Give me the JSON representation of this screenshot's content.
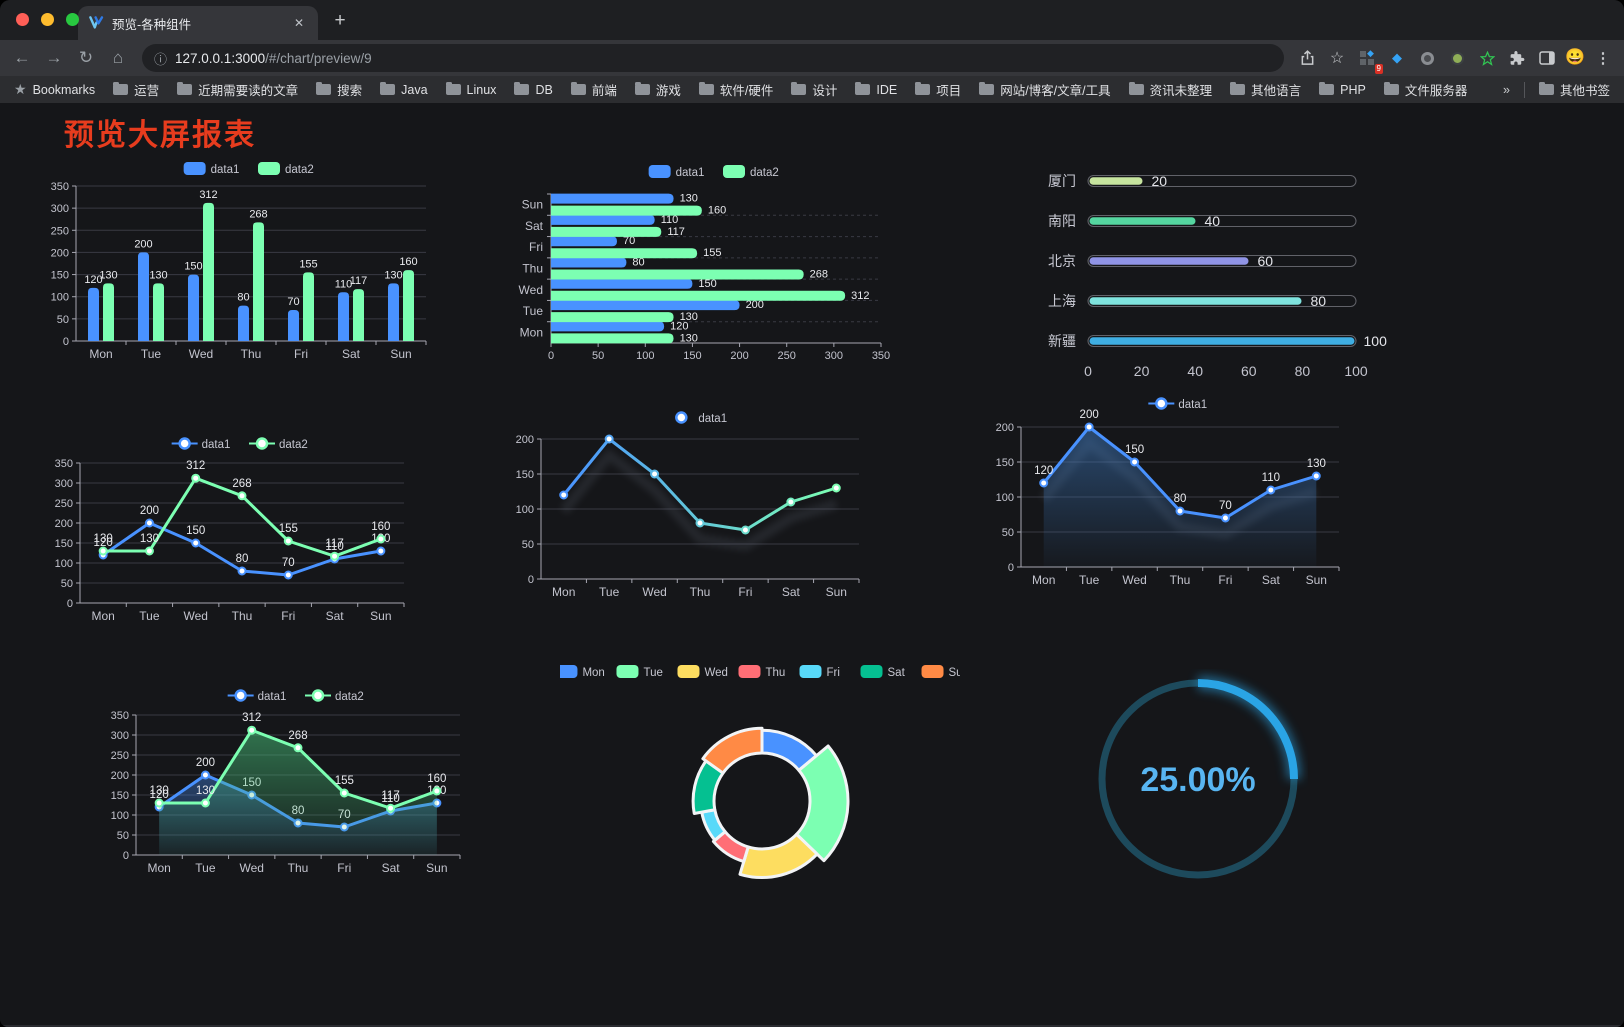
{
  "browser": {
    "tab": {
      "title": "预览-各种组件"
    },
    "url": {
      "host": "127.0.0.1:3000",
      "path": "/#/chart/preview/9"
    },
    "bookmarks_label": "Bookmarks",
    "bookmarks": [
      "运营",
      "近期需要读的文章",
      "搜索",
      "Java",
      "Linux",
      "DB",
      "前端",
      "游戏",
      "软件/硬件",
      "设计",
      "IDE",
      "项目",
      "网站/博客/文章/工具",
      "资讯未整理",
      "其他语言",
      "PHP",
      "文件服务器"
    ],
    "bookmarks_overflow": "»",
    "other_bookmarks": "其他书签",
    "extension_badge": "9",
    "icons": {
      "back": "←",
      "forward": "→",
      "reload": "↻",
      "home": "⌂",
      "info": "ⓘ",
      "star": "☆",
      "bookmarks_star": "★",
      "gem": "◆",
      "kebab": "⋮",
      "close": "✕",
      "plus": "+",
      "avatar": "😀"
    }
  },
  "page": {
    "title": "预览大屏报表",
    "title_color": "#e73c1e"
  },
  "colors": {
    "background": "#151619",
    "data1_blue": "#4992ff",
    "data2_green": "#7cffb2",
    "axis": "#a6a7b1",
    "grid": "#393a43",
    "tick_text": "#c3c4ce",
    "value_label": "#e9eaee",
    "traffic_red": "#ff5f57",
    "traffic_yellow": "#febc2e",
    "traffic_green": "#28c840"
  },
  "chart_data": [
    {
      "id": "bar-vertical",
      "type": "bar",
      "categories": [
        "Mon",
        "Tue",
        "Wed",
        "Thu",
        "Fri",
        "Sat",
        "Sun"
      ],
      "series": [
        {
          "name": "data1",
          "color": "#4992ff",
          "values": [
            120,
            200,
            150,
            80,
            70,
            110,
            130
          ]
        },
        {
          "name": "data2",
          "color": "#7cffb2",
          "values": [
            130,
            130,
            312,
            268,
            155,
            117,
            160
          ]
        }
      ],
      "ylim": [
        0,
        350
      ],
      "ytick": 50,
      "value_labels": true,
      "legend": "rect",
      "grid": true
    },
    {
      "id": "bar-horizontal",
      "type": "hbar",
      "categories": [
        "Mon",
        "Tue",
        "Wed",
        "Thu",
        "Fri",
        "Sat",
        "Sun"
      ],
      "series": [
        {
          "name": "data1",
          "color": "#4992ff",
          "values": [
            120,
            200,
            150,
            80,
            70,
            110,
            130
          ]
        },
        {
          "name": "data2",
          "color": "#7cffb2",
          "values": [
            130,
            130,
            312,
            268,
            155,
            117,
            160
          ]
        }
      ],
      "xlim": [
        0,
        350
      ],
      "xtick": 50,
      "value_labels": true,
      "legend": "rect"
    },
    {
      "id": "city-progress",
      "type": "progress",
      "categories": [
        "厦门",
        "南阳",
        "北京",
        "上海",
        "新疆"
      ],
      "values": [
        20,
        40,
        60,
        80,
        100
      ],
      "bar_colors": [
        "#c7e59f",
        "#55d6a0",
        "#9094e6",
        "#7fe3de",
        "#3faee3"
      ],
      "xlim": [
        0,
        100
      ],
      "xticks": [
        0,
        20,
        40,
        60,
        80,
        100
      ]
    },
    {
      "id": "line-two-series",
      "type": "line",
      "categories": [
        "Mon",
        "Tue",
        "Wed",
        "Thu",
        "Fri",
        "Sat",
        "Sun"
      ],
      "series": [
        {
          "name": "data1",
          "color": "#4992ff",
          "values": [
            120,
            200,
            150,
            80,
            70,
            110,
            130
          ]
        },
        {
          "name": "data2",
          "color": "#7cffb2",
          "values": [
            130,
            130,
            312,
            268,
            155,
            117,
            160
          ]
        }
      ],
      "ylim": [
        0,
        350
      ],
      "ytick": 50,
      "value_labels": true,
      "legend": "line"
    },
    {
      "id": "line-gradient",
      "type": "line",
      "categories": [
        "Mon",
        "Tue",
        "Wed",
        "Thu",
        "Fri",
        "Sat",
        "Sun"
      ],
      "series": [
        {
          "name": "data1",
          "gradient": [
            "#4992ff",
            "#7cffb2"
          ],
          "values": [
            120,
            200,
            150,
            80,
            70,
            110,
            130
          ],
          "shadow": true
        }
      ],
      "ylim": [
        0,
        200
      ],
      "ytick": 50,
      "value_labels": false,
      "legend": "line"
    },
    {
      "id": "line-area",
      "type": "line",
      "categories": [
        "Mon",
        "Tue",
        "Wed",
        "Thu",
        "Fri",
        "Sat",
        "Sun"
      ],
      "series": [
        {
          "name": "data1",
          "color": "#4992ff",
          "values": [
            120,
            200,
            150,
            80,
            70,
            110,
            130
          ],
          "area": [
            "rgba(62,125,198,0.50)",
            "rgba(62,125,198,0.03)"
          ],
          "shadow": true
        }
      ],
      "ylim": [
        0,
        200
      ],
      "ytick": 50,
      "value_labels": true,
      "legend": "line"
    },
    {
      "id": "area-two-series",
      "type": "line",
      "categories": [
        "Mon",
        "Tue",
        "Wed",
        "Thu",
        "Fri",
        "Sat",
        "Sun"
      ],
      "series": [
        {
          "name": "data1",
          "color": "#4992ff",
          "values": [
            120,
            200,
            150,
            80,
            70,
            110,
            130
          ],
          "area": [
            "rgba(73,146,255,0.38)",
            "rgba(73,146,255,0.04)"
          ]
        },
        {
          "name": "data2",
          "color": "#7cffb2",
          "values": [
            130,
            130,
            312,
            268,
            155,
            117,
            160
          ],
          "area": [
            "rgba(70,190,120,0.55)",
            "rgba(70,190,120,0.05)"
          ]
        }
      ],
      "ylim": [
        0,
        350
      ],
      "ytick": 50,
      "value_labels": true,
      "legend": "line"
    },
    {
      "id": "week-donut",
      "type": "pie",
      "rose": true,
      "categories": [
        "Mon",
        "Tue",
        "Wed",
        "Thu",
        "Fri",
        "Sat",
        "Sun"
      ],
      "values": [
        120,
        200,
        150,
        80,
        70,
        110,
        130
      ],
      "colors": [
        "#4992ff",
        "#7cffb2",
        "#fddd60",
        "#ff6e76",
        "#58d9f9",
        "#05c091",
        "#ff8a45"
      ],
      "inner_radius": 48,
      "outer_radius_max": 86,
      "legend": "rect",
      "legend_position": "top"
    },
    {
      "id": "percent-gauge",
      "type": "gauge",
      "value": 25,
      "max": 100,
      "display": "25.00%",
      "progress_color": "#2aa4e5",
      "track_color": "#1d4a5c",
      "text_color": "#58b5f1"
    }
  ]
}
